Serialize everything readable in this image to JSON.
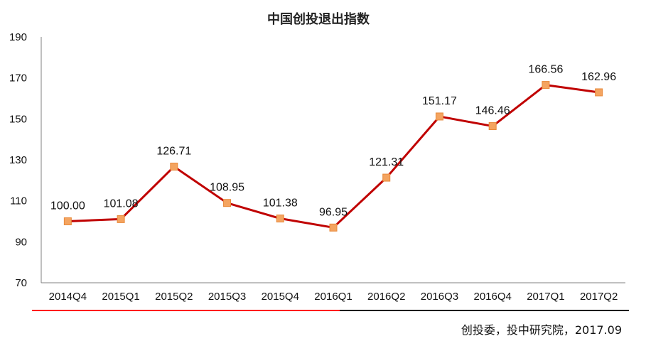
{
  "chart_data": {
    "type": "line",
    "title": "中国创投退出指数",
    "xlabel": "",
    "ylabel": "",
    "categories": [
      "2014Q4",
      "2015Q1",
      "2015Q2",
      "2015Q3",
      "2015Q4",
      "2016Q1",
      "2016Q2",
      "2016Q3",
      "2016Q4",
      "2017Q1",
      "2017Q2"
    ],
    "series": [
      {
        "values": [
          100.0,
          101.08,
          126.71,
          108.95,
          101.38,
          96.95,
          121.31,
          151.17,
          146.46,
          166.56,
          162.96
        ]
      }
    ],
    "data_labels": [
      "100.00",
      "101.08",
      "126.71",
      "108.95",
      "101.38",
      "96.95",
      "121.31",
      "151.17",
      "146.46",
      "166.56",
      "162.96"
    ],
    "y_ticks": [
      "190",
      "170",
      "150",
      "130",
      "110",
      "90",
      "70"
    ],
    "ylim": [
      70,
      190
    ],
    "grid": false,
    "legend": "none",
    "colors": {
      "line": "#c00000",
      "marker": "#f4a460",
      "marker_edge": "#e8893a",
      "underline_left": "#ff0000",
      "underline_right": "#000000"
    }
  },
  "source": "创投委，投中研究院，2017.09"
}
